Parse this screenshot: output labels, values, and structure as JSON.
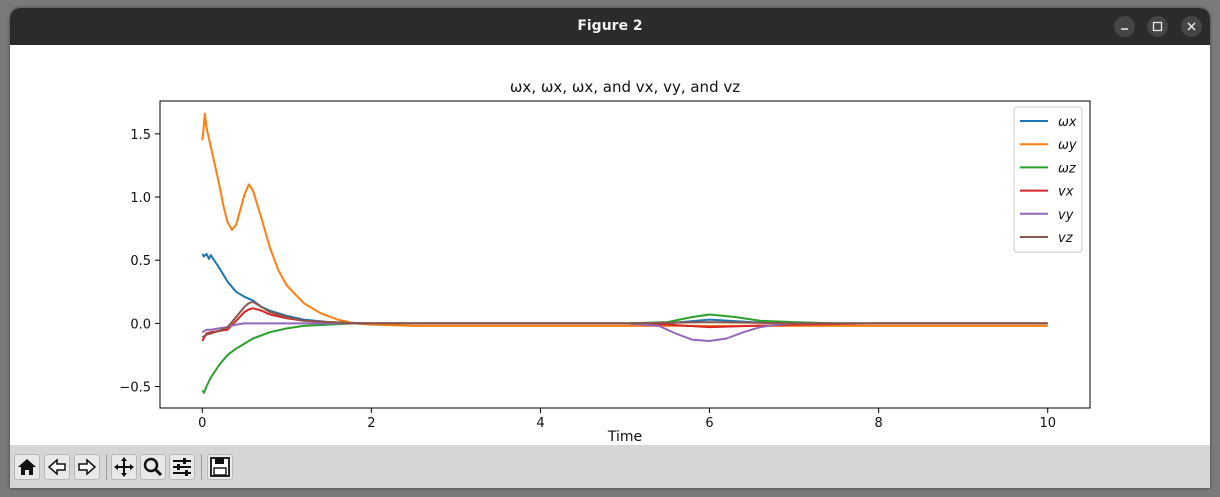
{
  "window": {
    "title": "Figure 2"
  },
  "toolbar": {
    "icons": [
      "home-icon",
      "back-arrow-icon",
      "forward-arrow-icon",
      "pan-move-icon",
      "zoom-magnifier-icon",
      "configure-subplots-icon",
      "save-floppy-icon"
    ]
  },
  "chart_data": {
    "type": "line",
    "title": "ωx, ωx, ωx, and vx, vy, and vz",
    "xlabel": "Time",
    "ylabel": "",
    "xlim": [
      -0.5,
      10.5
    ],
    "ylim": [
      -0.67,
      1.76
    ],
    "xticks": [
      0,
      2,
      4,
      6,
      8,
      10
    ],
    "xtick_labels": [
      "0",
      "2",
      "4",
      "6",
      "8",
      "10"
    ],
    "yticks": [
      -0.5,
      0.0,
      0.5,
      1.0,
      1.5
    ],
    "ytick_labels": [
      "−0.5",
      "0.0",
      "0.5",
      "1.0",
      "1.5"
    ],
    "grid": false,
    "legend_position": "top-right",
    "series": [
      {
        "name": "ωx",
        "color": "#1f77b4",
        "x": [
          0,
          0.02,
          0.05,
          0.08,
          0.1,
          0.2,
          0.3,
          0.4,
          0.5,
          0.6,
          0.7,
          0.8,
          1.0,
          1.2,
          1.5,
          2.0,
          3,
          5.5,
          6.0,
          6.5,
          7,
          8,
          10
        ],
        "y": [
          0.55,
          0.53,
          0.55,
          0.51,
          0.54,
          0.44,
          0.33,
          0.25,
          0.21,
          0.18,
          0.13,
          0.1,
          0.06,
          0.03,
          0.01,
          0.0,
          0.0,
          0.0,
          0.03,
          0.01,
          0.0,
          0.0,
          0.0
        ]
      },
      {
        "name": "ωy",
        "color": "#ff7f0e",
        "x": [
          0,
          0.01,
          0.03,
          0.05,
          0.1,
          0.15,
          0.2,
          0.25,
          0.3,
          0.35,
          0.4,
          0.45,
          0.5,
          0.55,
          0.6,
          0.7,
          0.8,
          0.9,
          1.0,
          1.2,
          1.4,
          1.6,
          1.8,
          2.0,
          2.5,
          3,
          4,
          5,
          6,
          7,
          8,
          9,
          10
        ],
        "y": [
          1.45,
          1.5,
          1.66,
          1.55,
          1.4,
          1.25,
          1.1,
          0.93,
          0.8,
          0.74,
          0.78,
          0.9,
          1.02,
          1.1,
          1.05,
          0.83,
          0.6,
          0.42,
          0.3,
          0.16,
          0.08,
          0.03,
          0.0,
          -0.01,
          -0.02,
          -0.02,
          -0.02,
          -0.02,
          -0.02,
          -0.02,
          -0.02,
          -0.02,
          -0.02
        ]
      },
      {
        "name": "ωz",
        "color": "#2ca02c",
        "x": [
          0,
          0.02,
          0.05,
          0.1,
          0.2,
          0.3,
          0.4,
          0.5,
          0.6,
          0.8,
          1.0,
          1.2,
          1.5,
          1.8,
          2.0,
          3,
          5,
          5.5,
          5.8,
          6.0,
          6.3,
          6.6,
          7,
          7.5,
          8,
          10
        ],
        "y": [
          -0.53,
          -0.55,
          -0.5,
          -0.43,
          -0.33,
          -0.25,
          -0.2,
          -0.16,
          -0.12,
          -0.07,
          -0.04,
          -0.02,
          -0.01,
          0.0,
          0.0,
          0.0,
          0.0,
          0.01,
          0.05,
          0.07,
          0.05,
          0.02,
          0.01,
          0.0,
          0.0,
          0.0
        ]
      },
      {
        "name": "vx",
        "color": "#d62728",
        "x": [
          0,
          0.05,
          0.1,
          0.2,
          0.3,
          0.4,
          0.5,
          0.55,
          0.6,
          0.7,
          0.8,
          1.0,
          1.2,
          1.5,
          1.8,
          2.0,
          3,
          5,
          5.5,
          6.0,
          6.5,
          7,
          8,
          10
        ],
        "y": [
          -0.14,
          -0.08,
          -0.07,
          -0.06,
          -0.05,
          0.02,
          0.09,
          0.11,
          0.12,
          0.1,
          0.07,
          0.04,
          0.02,
          0.01,
          0.0,
          0.0,
          0.0,
          0.0,
          -0.01,
          -0.03,
          -0.02,
          -0.01,
          0.0,
          0.0
        ]
      },
      {
        "name": "vy",
        "color": "#9467bd",
        "x": [
          0,
          0.05,
          0.1,
          0.2,
          0.3,
          0.4,
          0.5,
          0.6,
          0.8,
          1.0,
          1.5,
          2.0,
          3,
          5,
          5.4,
          5.6,
          5.8,
          6.0,
          6.2,
          6.4,
          6.6,
          6.8,
          7,
          8,
          10
        ],
        "y": [
          -0.07,
          -0.05,
          -0.05,
          -0.04,
          -0.03,
          -0.01,
          0.0,
          0.0,
          0.0,
          0.0,
          0.0,
          0.0,
          0.0,
          0.0,
          -0.02,
          -0.08,
          -0.13,
          -0.14,
          -0.12,
          -0.07,
          -0.03,
          -0.01,
          0.0,
          0.0,
          0.0
        ]
      },
      {
        "name": "vz",
        "color": "#8c564b",
        "x": [
          0,
          0.05,
          0.1,
          0.2,
          0.3,
          0.4,
          0.5,
          0.55,
          0.6,
          0.7,
          0.8,
          1.0,
          1.2,
          1.5,
          1.8,
          2.0,
          3,
          5,
          6.0,
          7,
          10
        ],
        "y": [
          -0.11,
          -0.09,
          -0.08,
          -0.06,
          -0.03,
          0.05,
          0.13,
          0.16,
          0.17,
          0.13,
          0.09,
          0.05,
          0.02,
          0.01,
          0.0,
          0.0,
          0.0,
          0.0,
          0.01,
          0.0,
          0.0
        ]
      }
    ]
  }
}
